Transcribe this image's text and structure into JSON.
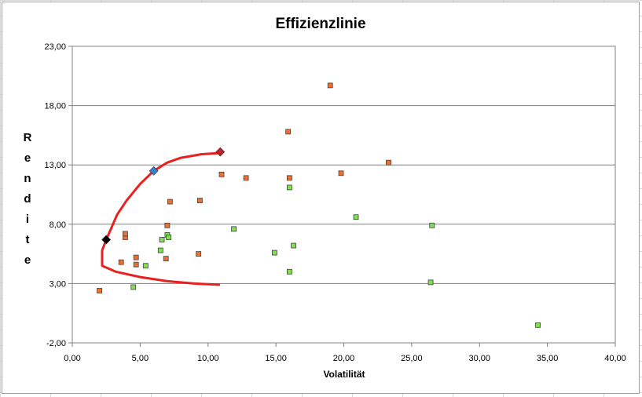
{
  "chart_data": {
    "type": "scatter",
    "title": "Effizienzlinie",
    "xlabel": "Volatilität",
    "ylabel": "Rendite",
    "xlim": [
      0,
      40
    ],
    "ylim": [
      -2,
      23
    ],
    "xticks": [
      "0,00",
      "5,00",
      "10,00",
      "15,00",
      "20,00",
      "25,00",
      "30,00",
      "35,00",
      "40,00"
    ],
    "yticks": [
      "-2,00",
      "3,00",
      "8,00",
      "13,00",
      "18,00",
      "23,00"
    ],
    "grid": "horizontal",
    "legend": "none",
    "colors": {
      "orange": "#f07030",
      "green": "#80e050",
      "curve": "#e82020",
      "black": "#000000",
      "blue": "#3a7fd0",
      "darkred": "#c0202c"
    },
    "series": [
      {
        "color": "orange",
        "marker": "square",
        "points": [
          [
            2.0,
            2.4
          ],
          [
            3.6,
            4.8
          ],
          [
            3.9,
            6.9
          ],
          [
            3.9,
            7.2
          ],
          [
            4.7,
            4.6
          ],
          [
            4.7,
            5.2
          ],
          [
            6.9,
            5.1
          ],
          [
            7.0,
            7.9
          ],
          [
            7.2,
            9.9
          ],
          [
            9.3,
            5.5
          ],
          [
            9.4,
            10.0
          ],
          [
            11.0,
            12.2
          ],
          [
            12.8,
            11.9
          ],
          [
            15.9,
            15.8
          ],
          [
            16.0,
            11.9
          ],
          [
            19.0,
            19.7
          ],
          [
            19.8,
            12.3
          ],
          [
            23.3,
            13.2
          ]
        ]
      },
      {
        "color": "green",
        "marker": "square",
        "points": [
          [
            4.5,
            2.7
          ],
          [
            5.4,
            4.5
          ],
          [
            6.5,
            5.8
          ],
          [
            6.6,
            6.7
          ],
          [
            7.0,
            7.1
          ],
          [
            7.1,
            6.9
          ],
          [
            11.9,
            7.6
          ],
          [
            14.9,
            5.6
          ],
          [
            16.0,
            4.0
          ],
          [
            16.0,
            11.1
          ],
          [
            16.3,
            6.2
          ],
          [
            20.9,
            8.6
          ],
          [
            26.4,
            3.1
          ],
          [
            26.5,
            7.9
          ],
          [
            34.3,
            -0.5
          ]
        ]
      },
      {
        "color": "curve",
        "marker": "line",
        "points": [
          [
            10.8,
            2.9
          ],
          [
            9.0,
            3.0
          ],
          [
            7.0,
            3.2
          ],
          [
            5.0,
            3.55
          ],
          [
            3.2,
            4.0
          ],
          [
            2.2,
            4.5
          ],
          [
            2.2,
            5.8
          ],
          [
            2.5,
            6.7
          ],
          [
            3.3,
            8.8
          ],
          [
            4.0,
            10.0
          ],
          [
            5.0,
            11.4
          ],
          [
            6.0,
            12.5
          ],
          [
            7.0,
            13.2
          ],
          [
            8.0,
            13.6
          ],
          [
            9.5,
            13.9
          ],
          [
            10.8,
            14.0
          ]
        ]
      },
      {
        "color": "black",
        "marker": "diamond",
        "points": [
          [
            2.5,
            6.7
          ]
        ]
      },
      {
        "color": "blue",
        "marker": "diamond",
        "points": [
          [
            6.0,
            12.5
          ]
        ]
      },
      {
        "color": "darkred",
        "marker": "diamond",
        "points": [
          [
            10.9,
            14.1
          ]
        ]
      }
    ]
  }
}
